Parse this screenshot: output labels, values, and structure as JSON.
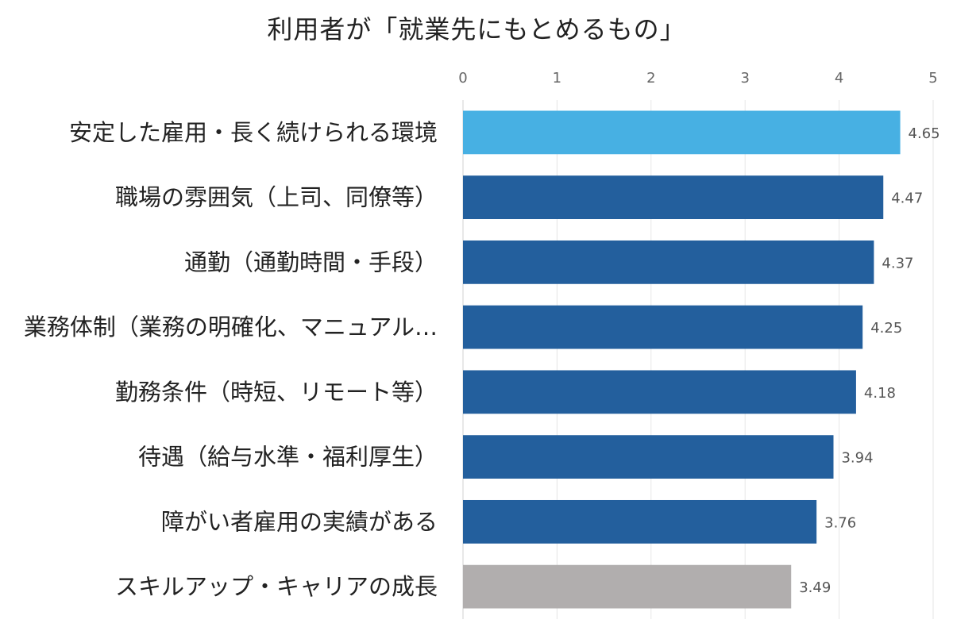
{
  "chart_data": {
    "type": "bar",
    "orientation": "horizontal",
    "title": "利用者が「就業先にもとめるもの」",
    "xlabel": "",
    "ylabel": "",
    "xlim": [
      0,
      5
    ],
    "x_ticks": [
      "0",
      "1",
      "2",
      "3",
      "4",
      "5"
    ],
    "grid": true,
    "categories": [
      "安定した雇用・長く続けられる環境",
      "職場の雰囲気（上司、同僚等）",
      "通勤（通勤時間・手段）",
      "業務体制（業務の明確化、マニュアル…",
      "勤務条件（時短、リモート等）",
      "待遇（給与水準・福利厚生）",
      "障がい者雇用の実績がある",
      "スキルアップ・キャリアの成長"
    ],
    "values": [
      4.65,
      4.47,
      4.37,
      4.25,
      4.18,
      3.94,
      3.76,
      3.49
    ],
    "value_labels": [
      "4.65",
      "4.47",
      "4.37",
      "4.25",
      "4.18",
      "3.94",
      "3.76",
      "3.49"
    ],
    "bar_colors": [
      "#47b0e3",
      "#235f9d",
      "#235f9d",
      "#235f9d",
      "#235f9d",
      "#235f9d",
      "#235f9d",
      "#b1aeae"
    ],
    "grid_color": "#e6e6e6"
  }
}
